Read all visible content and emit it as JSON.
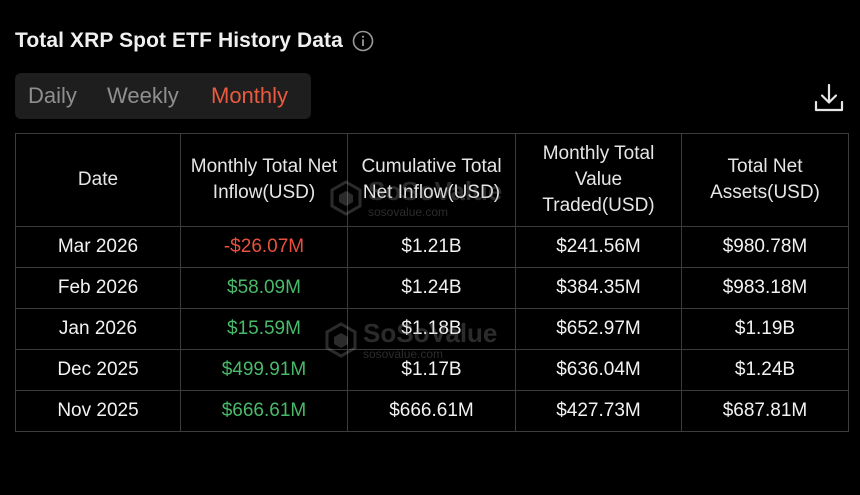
{
  "header": {
    "title": "Total XRP Spot ETF History Data",
    "info_icon": "info-icon"
  },
  "tabs": [
    {
      "label": "Daily",
      "active": false
    },
    {
      "label": "Weekly",
      "active": false
    },
    {
      "label": "Monthly",
      "active": true
    }
  ],
  "toolbar": {
    "download_icon": "download-icon"
  },
  "table": {
    "columns": [
      "Date",
      "Monthly Total Net Inflow(USD)",
      "Cumulative Total Net Inflow(USD)",
      "Monthly Total Value Traded(USD)",
      "Total Net Assets(USD)"
    ],
    "rows": [
      {
        "date": "Mar 2026",
        "net_inflow": "-$26.07M",
        "inflow_sign": "negative",
        "cumulative": "$1.21B",
        "value_traded": "$241.56M",
        "net_assets": "$980.78M"
      },
      {
        "date": "Feb 2026",
        "net_inflow": "$58.09M",
        "inflow_sign": "positive",
        "cumulative": "$1.24B",
        "value_traded": "$384.35M",
        "net_assets": "$983.18M"
      },
      {
        "date": "Jan 2026",
        "net_inflow": "$15.59M",
        "inflow_sign": "positive",
        "cumulative": "$1.18B",
        "value_traded": "$652.97M",
        "net_assets": "$1.19B"
      },
      {
        "date": "Dec 2025",
        "net_inflow": "$499.91M",
        "inflow_sign": "positive",
        "cumulative": "$1.17B",
        "value_traded": "$636.04M",
        "net_assets": "$1.24B"
      },
      {
        "date": "Nov 2025",
        "net_inflow": "$666.61M",
        "inflow_sign": "positive",
        "cumulative": "$666.61M",
        "value_traded": "$427.73M",
        "net_assets": "$687.81M"
      }
    ]
  },
  "watermark": {
    "brand": "SoSoValue",
    "url": "sosovalue.com"
  },
  "colors": {
    "accent": "#e95a3e",
    "positive": "#49b96a",
    "negative": "#e8503f",
    "background": "#000000",
    "border": "#3c3c3c"
  }
}
